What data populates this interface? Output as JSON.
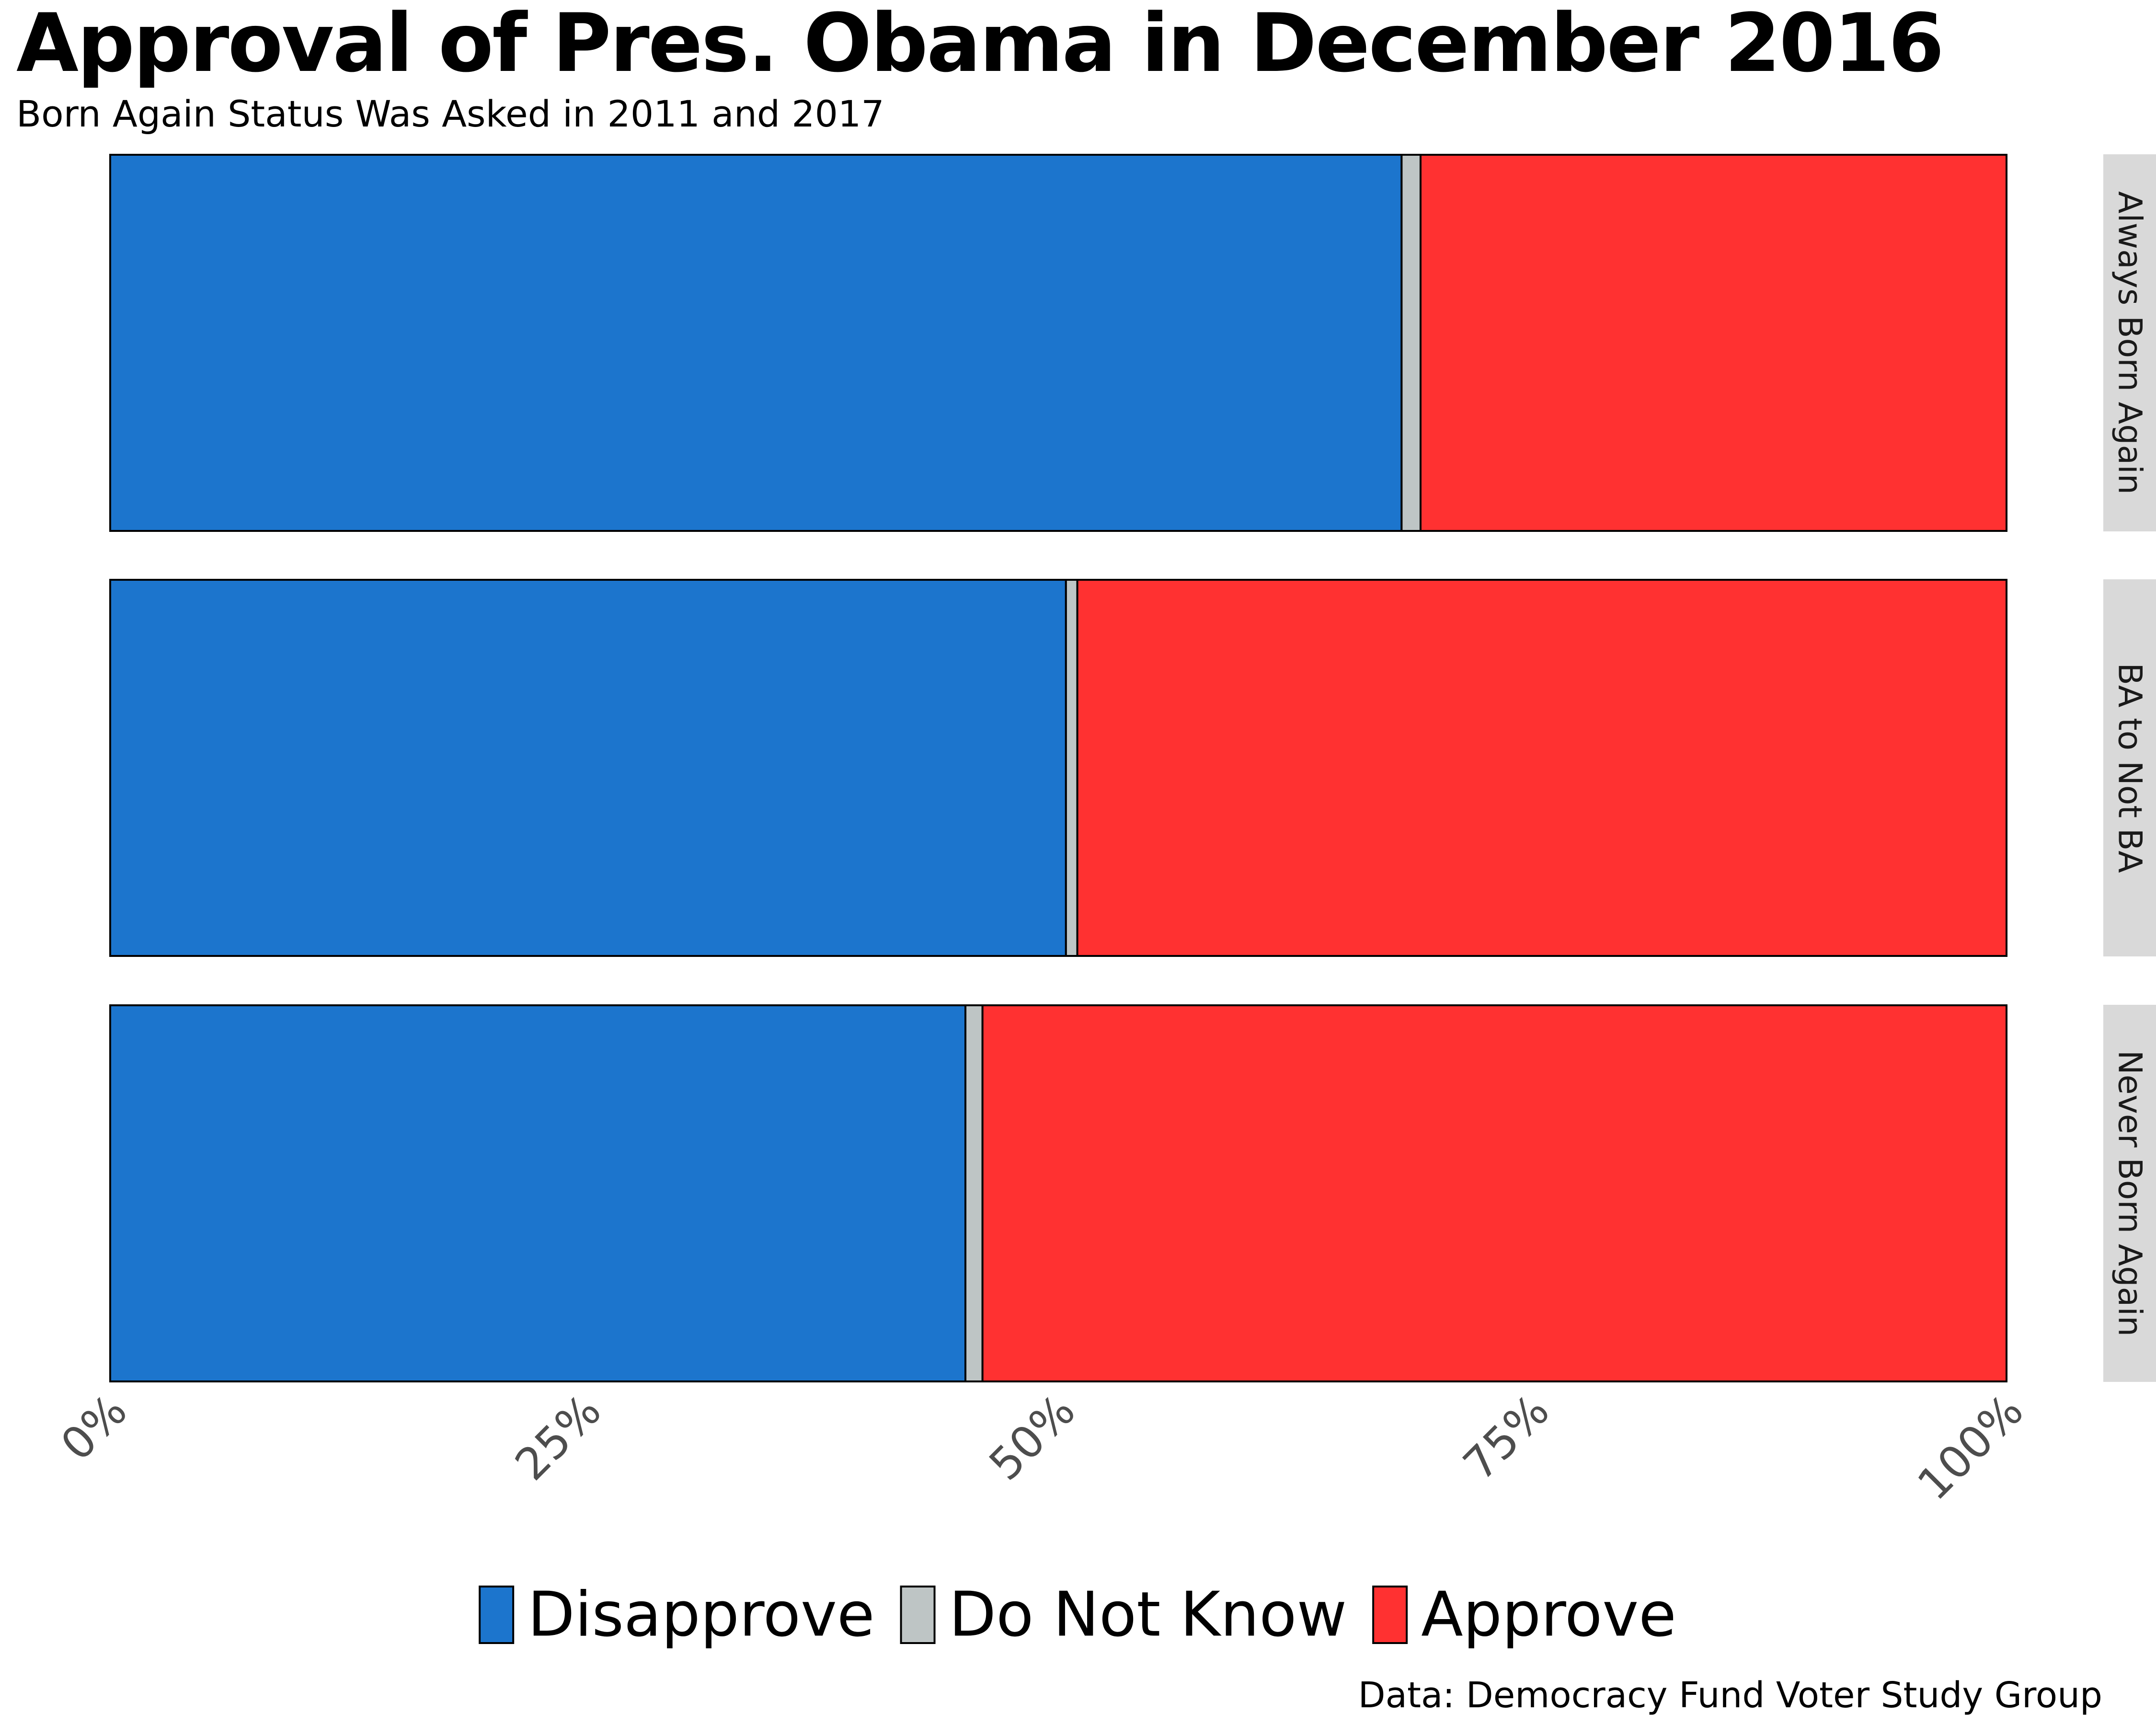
{
  "chart_data": {
    "type": "bar",
    "orientation": "horizontal",
    "stacked": true,
    "title": "Approval of Pres. Obama in December 2016",
    "subtitle": "Born Again Status Was Asked in 2011 and 2017",
    "caption": "Data: Democracy Fund Voter Study Group",
    "xlabel": "",
    "ylabel": "",
    "xlim": [
      0,
      1
    ],
    "x_ticks": [
      0,
      0.25,
      0.5,
      0.75,
      1.0
    ],
    "x_tick_labels": [
      "0%",
      "25%",
      "50%",
      "75%",
      "100%"
    ],
    "grid": "vertical dashed",
    "legend_position": "bottom",
    "categories": [
      "Always Born Again",
      "BA to Not BA",
      "Never Born Again"
    ],
    "series": [
      {
        "name": "Disapprove",
        "color": "#1c75cd",
        "values": [
          0.681,
          0.504,
          0.451
        ]
      },
      {
        "name": "Do Not Know",
        "color": "#bec5c5",
        "values": [
          0.01,
          0.006,
          0.009
        ]
      },
      {
        "name": "Approve",
        "color": "#ff3131",
        "values": [
          0.309,
          0.49,
          0.54
        ]
      }
    ]
  }
}
